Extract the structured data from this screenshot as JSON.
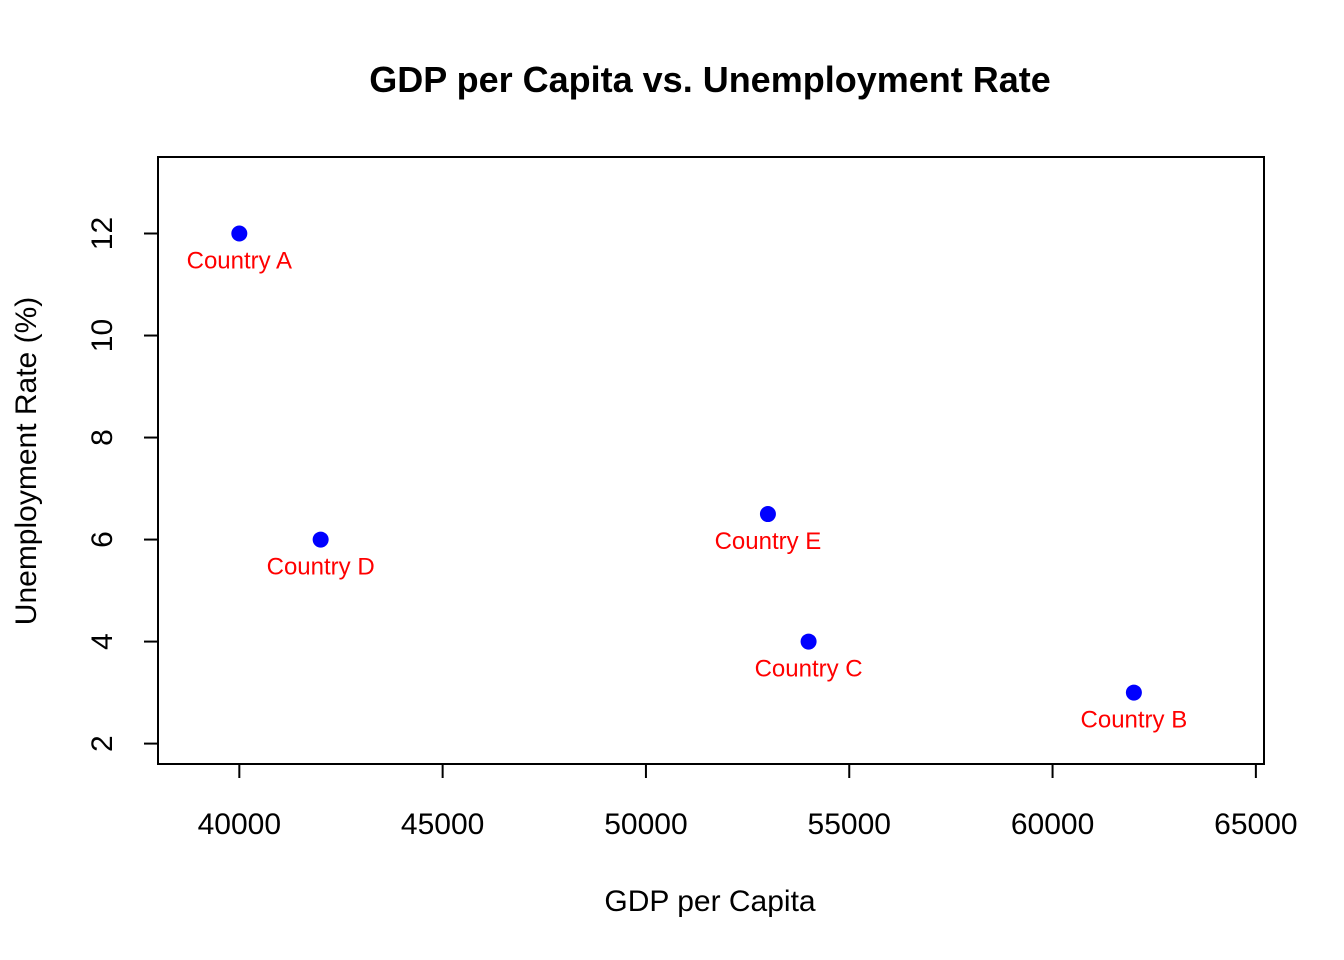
{
  "chart_data": {
    "type": "scatter",
    "title": "GDP per Capita vs. Unemployment Rate",
    "xlabel": "GDP per Capita",
    "ylabel": "Unemployment Rate (%)",
    "xlim": [
      38000,
      65200
    ],
    "ylim": [
      1.6,
      13.5
    ],
    "xticks": [
      40000,
      45000,
      50000,
      55000,
      60000,
      65000
    ],
    "yticks": [
      2,
      4,
      6,
      8,
      10,
      12
    ],
    "grid": false,
    "point_color": "#0000FF",
    "label_color": "#FF0000",
    "points": [
      {
        "label": "Country A",
        "x": 40000,
        "y": 12
      },
      {
        "label": "Country D",
        "x": 42000,
        "y": 6
      },
      {
        "label": "Country E",
        "x": 53000,
        "y": 6.5
      },
      {
        "label": "Country C",
        "x": 54000,
        "y": 4
      },
      {
        "label": "Country B",
        "x": 62000,
        "y": 3
      }
    ]
  }
}
